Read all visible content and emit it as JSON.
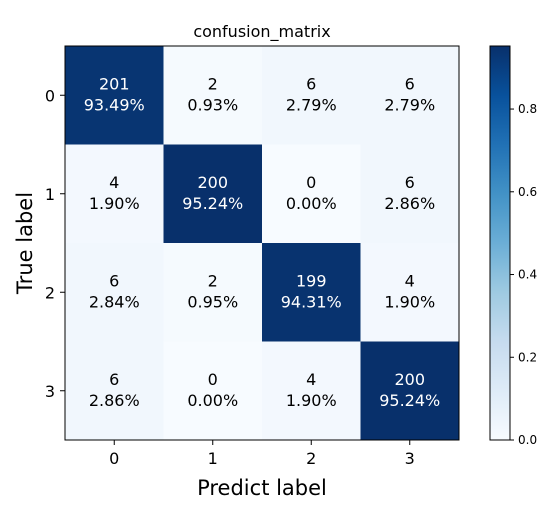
{
  "chart_data": {
    "type": "heatmap",
    "title": "confusion_matrix",
    "xlabel": "Predict label",
    "ylabel": "True label",
    "x_categories": [
      "0",
      "1",
      "2",
      "3"
    ],
    "y_categories": [
      "0",
      "1",
      "2",
      "3"
    ],
    "counts": [
      [
        201,
        2,
        6,
        6
      ],
      [
        4,
        200,
        0,
        6
      ],
      [
        6,
        2,
        199,
        4
      ],
      [
        6,
        0,
        4,
        200
      ]
    ],
    "percent_labels": [
      [
        "93.49%",
        "0.93%",
        "2.79%",
        "2.79%"
      ],
      [
        "1.90%",
        "95.24%",
        "0.00%",
        "2.86%"
      ],
      [
        "2.84%",
        "0.95%",
        "94.31%",
        "1.90%"
      ],
      [
        "2.86%",
        "0.00%",
        "1.90%",
        "95.24%"
      ]
    ],
    "normalized": [
      [
        0.9349,
        0.0093,
        0.0279,
        0.0279
      ],
      [
        0.019,
        0.9524,
        0.0,
        0.0286
      ],
      [
        0.0284,
        0.0095,
        0.9431,
        0.019
      ],
      [
        0.0286,
        0.0,
        0.019,
        0.9524
      ]
    ],
    "colorbar": {
      "range": [
        0.0,
        0.9524
      ],
      "ticks": [
        "0.0",
        "0.2",
        "0.4",
        "0.6",
        "0.8"
      ],
      "tick_values": [
        0.0,
        0.2,
        0.4,
        0.6,
        0.8
      ],
      "colormap": "Blues",
      "low_color": "#f7fbff",
      "high_color": "#08306b"
    },
    "grid": false
  }
}
